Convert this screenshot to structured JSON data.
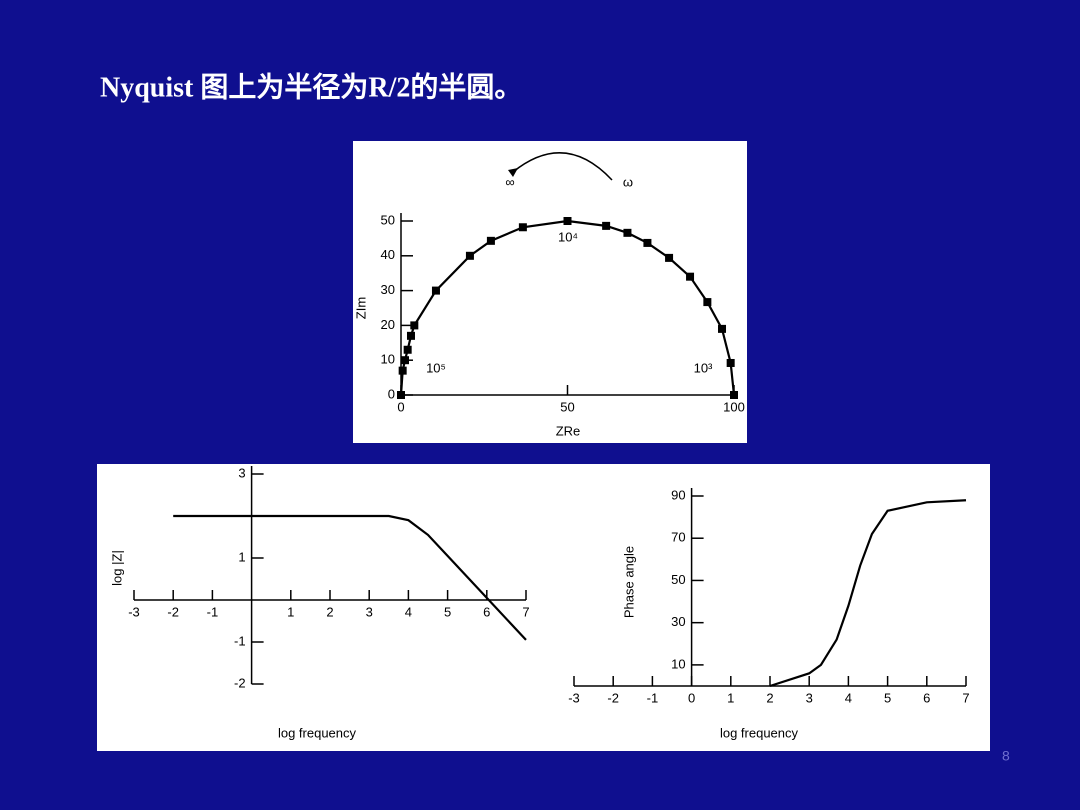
{
  "title": "Nyquist 图上为半径为R/2的半圆。",
  "page_number": "8",
  "chart_data": [
    {
      "type": "scatter",
      "xlabel": "ZRe",
      "ylabel": "ZIm",
      "xlim": [
        0,
        100
      ],
      "ylim": [
        0,
        50
      ],
      "xticks": [
        0,
        50,
        100
      ],
      "yticks": [
        0,
        10,
        20,
        30,
        40,
        50
      ],
      "annotations": [
        "∞",
        "ω",
        "10⁴",
        "10⁵",
        "10³"
      ],
      "series": [
        {
          "color": "#000000",
          "x": [
            0,
            0.5,
            1.2,
            2,
            3,
            4,
            10.5,
            20.7,
            27,
            36.6,
            50,
            61.6,
            68,
            74,
            80.5,
            86.8,
            92,
            96.4,
            99,
            100
          ],
          "values": [
            0,
            7,
            10,
            13,
            17,
            20,
            30,
            40,
            44.3,
            48.2,
            50,
            48.6,
            46.6,
            43.7,
            39.4,
            34,
            26.7,
            19,
            9.2,
            0
          ]
        }
      ]
    },
    {
      "type": "line",
      "xlabel": "log frequency",
      "ylabel": "log |Z|",
      "xlim": [
        -3,
        7
      ],
      "ylim": [
        -2,
        3
      ],
      "xticks": [
        -3,
        -2,
        -1,
        1,
        2,
        3,
        4,
        5,
        6,
        7
      ],
      "yticks": [
        3,
        1,
        -1,
        -2
      ],
      "series": [
        {
          "color": "#000000",
          "x": [
            -2,
            3,
            3.5,
            4,
            4.5,
            5,
            6,
            7
          ],
          "values": [
            2,
            2,
            2,
            1.9,
            1.55,
            1.05,
            0.05,
            -0.95
          ]
        }
      ]
    },
    {
      "type": "line",
      "xlabel": "log frequency",
      "ylabel": "Phase angle",
      "xlim": [
        -3,
        7
      ],
      "ylim": [
        0,
        90
      ],
      "xticks": [
        -3,
        -2,
        -1,
        0,
        1,
        2,
        3,
        4,
        5,
        6,
        7
      ],
      "yticks": [
        10,
        30,
        50,
        70,
        90
      ],
      "series": [
        {
          "color": "#000000",
          "x": [
            2,
            3,
            3.3,
            3.7,
            4,
            4.3,
            4.6,
            5,
            6,
            7
          ],
          "values": [
            0,
            6,
            10,
            22,
            38,
            57,
            72,
            83,
            87,
            88
          ]
        }
      ]
    }
  ]
}
